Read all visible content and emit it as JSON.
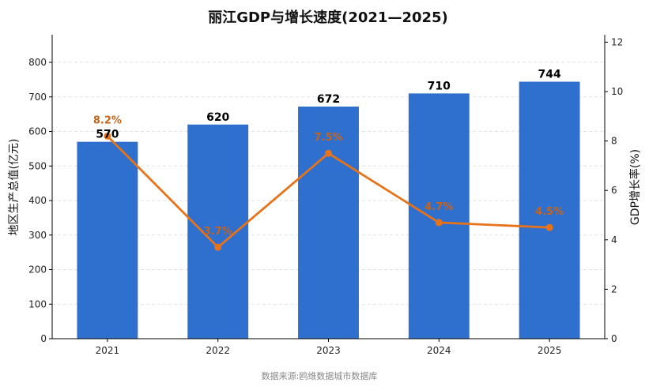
{
  "chart_data": {
    "type": "bar+line",
    "title": "丽江GDP与增长速度(2021—2025)",
    "categories": [
      "2021",
      "2022",
      "2023",
      "2024",
      "2025"
    ],
    "series": [
      {
        "name": "地区生产总值(亿元)",
        "type": "bar",
        "axis": "left",
        "values": [
          570,
          620,
          672,
          710,
          744
        ],
        "labels": [
          "570",
          "620",
          "672",
          "710",
          "744"
        ]
      },
      {
        "name": "GDP增长率(%)",
        "type": "line",
        "axis": "right",
        "values": [
          8.2,
          3.7,
          7.5,
          4.7,
          4.5
        ],
        "labels": [
          "8.2%",
          "3.7%",
          "7.5%",
          "4.7%",
          "4.5%"
        ]
      }
    ],
    "ylabel": "地区生产总值(亿元)",
    "y2label": "GDP增长率(%)",
    "ylim": [
      0,
      880
    ],
    "y2lim": [
      0,
      12.3
    ],
    "yticks": [
      0,
      100,
      200,
      300,
      400,
      500,
      600,
      700,
      800
    ],
    "y2ticks": [
      0,
      2,
      4,
      6,
      8,
      10,
      12
    ],
    "grid": true,
    "colors": {
      "bar": "#2f6fce",
      "line": "#e6731a",
      "line_label": "#c8641a",
      "y2label": "#c8641a"
    },
    "source": "数据来源:鸥维数据城市数据库"
  }
}
